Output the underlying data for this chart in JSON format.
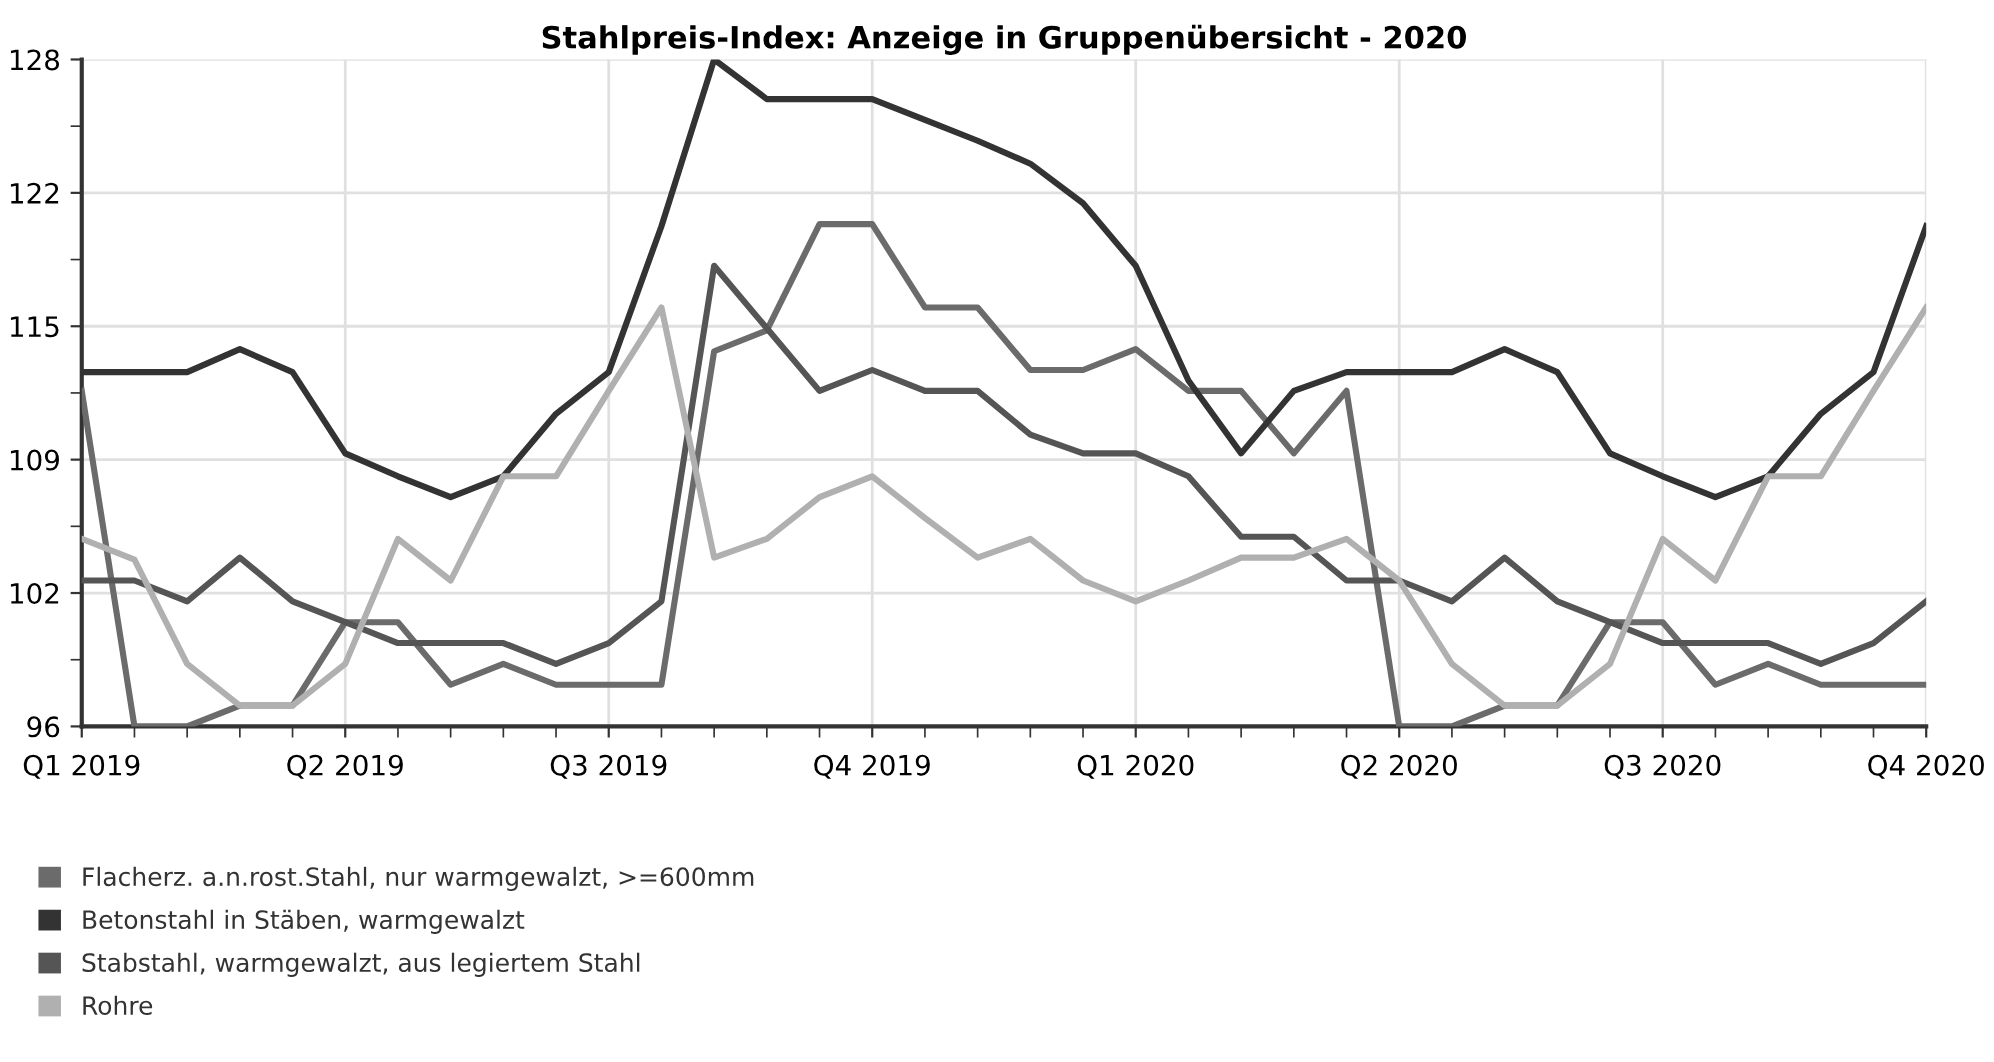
{
  "chart_data": {
    "type": "line",
    "title": "Stahlpreis-Index: Anzeige in Gruppenübersicht - 2020",
    "categories": [
      "Q1 2019",
      null,
      null,
      null,
      null,
      "Q2 2019",
      null,
      null,
      null,
      null,
      "Q3 2019",
      null,
      null,
      null,
      null,
      "Q4 2019",
      null,
      null,
      null,
      null,
      "Q1 2020",
      null,
      null,
      null,
      null,
      "Q2 2020",
      null,
      null,
      null,
      null,
      "Q3 2020",
      null,
      null,
      null,
      null,
      "Q4 2020"
    ],
    "series": [
      {
        "name": "Flacherz. a.n.rost.Stahl, nur warmgewalzt, >=600mm",
        "color": "#6b6b6b",
        "values": [
          112.1,
          96,
          96,
          97,
          97,
          101,
          101,
          98,
          99,
          98,
          98,
          98,
          114,
          115,
          120.1,
          120.1,
          116.1,
          116.1,
          113.1,
          113.1,
          114.1,
          112.1,
          112.1,
          109.1,
          112.1,
          96,
          96,
          97,
          97,
          101,
          101,
          98,
          99,
          98,
          98,
          98
        ]
      },
      {
        "name": "Betonstahl in Stäben, warmgewalzt",
        "color": "#333333",
        "values": [
          113,
          113,
          113,
          114.1,
          113,
          109.1,
          108,
          107,
          108,
          111,
          113,
          120,
          128,
          126.1,
          126.1,
          126.1,
          125.1,
          124.1,
          123,
          121.1,
          118.1,
          112.6,
          109.1,
          112.1,
          113,
          113,
          113,
          114.1,
          113,
          109.1,
          108,
          107,
          108,
          111,
          113,
          120
        ]
      },
      {
        "name": "Stabstahl, warmgewalzt, aus legiertem Stahl",
        "color": "#555555",
        "values": [
          103,
          103,
          102,
          104.1,
          102,
          101,
          100,
          100,
          100,
          99,
          100,
          102,
          118.1,
          115.1,
          112.1,
          113.1,
          112.1,
          112.1,
          110,
          109.1,
          109.1,
          108,
          105.1,
          105.1,
          103,
          103,
          102,
          104.1,
          102,
          101,
          100,
          100,
          100,
          99,
          100,
          102
        ]
      },
      {
        "name": "Rohre",
        "color": "#b0b0b0",
        "values": [
          105,
          104,
          99,
          97,
          97,
          99,
          105,
          103,
          108,
          108,
          112.1,
          116.1,
          104.1,
          105,
          107,
          108,
          106,
          104.1,
          105,
          103,
          102,
          103,
          104.1,
          104.1,
          105,
          103,
          99,
          97,
          97,
          99,
          105,
          103,
          108,
          108,
          112.1,
          116.1
        ]
      }
    ],
    "ylim": [
      96,
      128
    ],
    "yticks": [
      96,
      {
        "value": 102.4,
        "label": "102"
      },
      {
        "value": 108.8,
        "label": "109"
      },
      {
        "value": 115.2,
        "label": "115"
      },
      {
        "value": 121.6,
        "label": "122"
      },
      128
    ],
    "grid": true,
    "legend": "bottom",
    "line_style": "solid"
  }
}
